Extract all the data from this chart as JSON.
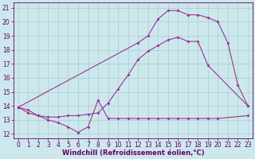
{
  "xlabel": "Windchill (Refroidissement éolien,°C)",
  "bg_color": "#cce8ec",
  "grid_color": "#aacccc",
  "line_color": "#993399",
  "xlim": [
    -0.5,
    23.5
  ],
  "ylim": [
    11.7,
    21.4
  ],
  "xticks": [
    0,
    1,
    2,
    3,
    4,
    5,
    6,
    7,
    8,
    9,
    10,
    11,
    12,
    13,
    14,
    15,
    16,
    17,
    18,
    19,
    20,
    21,
    22,
    23
  ],
  "yticks": [
    12,
    13,
    14,
    15,
    16,
    17,
    18,
    19,
    20,
    21
  ],
  "line1_x": [
    0,
    1,
    2,
    3,
    4,
    5,
    6,
    7,
    8,
    9,
    10,
    11,
    12,
    13,
    14,
    15,
    16,
    17,
    18,
    19,
    20,
    23
  ],
  "line1_y": [
    13.9,
    13.7,
    13.3,
    13.0,
    12.8,
    12.5,
    12.1,
    12.5,
    14.4,
    13.1,
    13.1,
    13.1,
    13.1,
    13.1,
    13.1,
    13.1,
    13.1,
    13.1,
    13.1,
    13.1,
    13.1,
    13.3
  ],
  "line2_x": [
    0,
    1,
    2,
    3,
    4,
    5,
    6,
    7,
    8,
    9,
    10,
    11,
    12,
    13,
    14,
    15,
    16,
    17,
    18,
    19,
    23
  ],
  "line2_y": [
    13.9,
    13.5,
    13.3,
    13.2,
    13.2,
    13.3,
    13.3,
    13.4,
    13.5,
    14.2,
    15.2,
    16.2,
    17.3,
    17.9,
    18.3,
    18.7,
    18.9,
    18.6,
    18.6,
    16.9,
    14.0
  ],
  "line3_x": [
    0,
    12,
    13,
    14,
    15,
    16,
    17,
    18,
    19,
    20,
    21,
    22,
    23
  ],
  "line3_y": [
    13.9,
    18.5,
    19.0,
    20.2,
    20.8,
    20.8,
    20.5,
    20.5,
    20.3,
    20.0,
    18.5,
    15.5,
    14.0
  ],
  "xlabel_fontsize": 6,
  "tick_fontsize": 5.5,
  "marker": "D",
  "marker_size": 2,
  "linewidth": 0.8
}
